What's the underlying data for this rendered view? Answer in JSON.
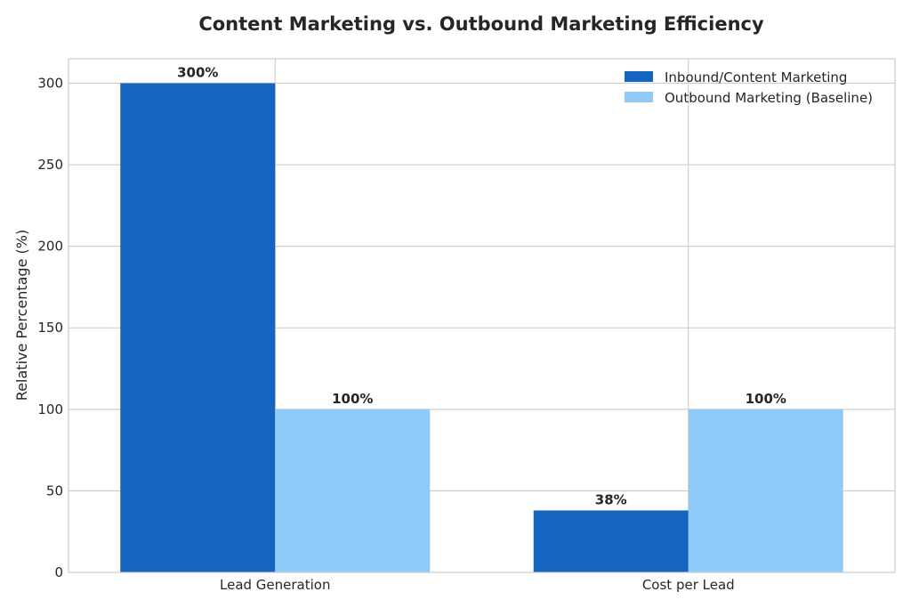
{
  "chart_data": {
    "type": "bar",
    "title": "Content Marketing vs. Outbound Marketing Efficiency",
    "xlabel": "",
    "ylabel": "Relative Percentage (%)",
    "ylim": [
      0,
      315
    ],
    "yticks": [
      0,
      50,
      100,
      150,
      200,
      250,
      300
    ],
    "categories": [
      "Lead Generation",
      "Cost per Lead"
    ],
    "series": [
      {
        "name": "Inbound/Content Marketing",
        "values": [
          300,
          38
        ],
        "labels": [
          "300%",
          "38%"
        ],
        "color": "#1565c0"
      },
      {
        "name": "Outbound Marketing (Baseline)",
        "values": [
          100,
          100
        ],
        "labels": [
          "100%",
          "100%"
        ],
        "color": "#90caf9"
      }
    ],
    "grid": true,
    "legend_position": "top-right"
  }
}
